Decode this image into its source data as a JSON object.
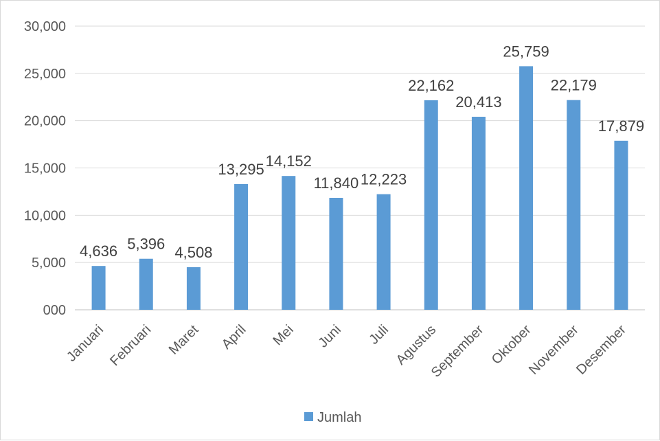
{
  "chart_data": {
    "type": "bar",
    "categories": [
      "Januari",
      "Februari",
      "Maret",
      "April",
      "Mei",
      "Juni",
      "Juli",
      "Agustus",
      "September",
      "Oktober",
      "November",
      "Desember"
    ],
    "series": [
      {
        "name": "Jumlah",
        "values": [
          4636,
          5396,
          4508,
          13295,
          14152,
          11840,
          12223,
          22162,
          20413,
          25759,
          22179,
          17879
        ],
        "labels": [
          "4,636",
          "5,396",
          "4,508",
          "13,295",
          "14,152",
          "11,840",
          "12,223",
          "22,162",
          "20,413",
          "25,759",
          "22,179",
          "17,879"
        ]
      }
    ],
    "yticks": [
      "000",
      "5,000",
      "10,000",
      "15,000",
      "20,000",
      "25,000",
      "30,000"
    ],
    "ylim": [
      0,
      30000
    ],
    "grid": true,
    "legend": "bottom",
    "colors": {
      "bar": "#5b9bd5",
      "grid": "#d9d9d9",
      "axis": "#bfbfbf"
    }
  }
}
